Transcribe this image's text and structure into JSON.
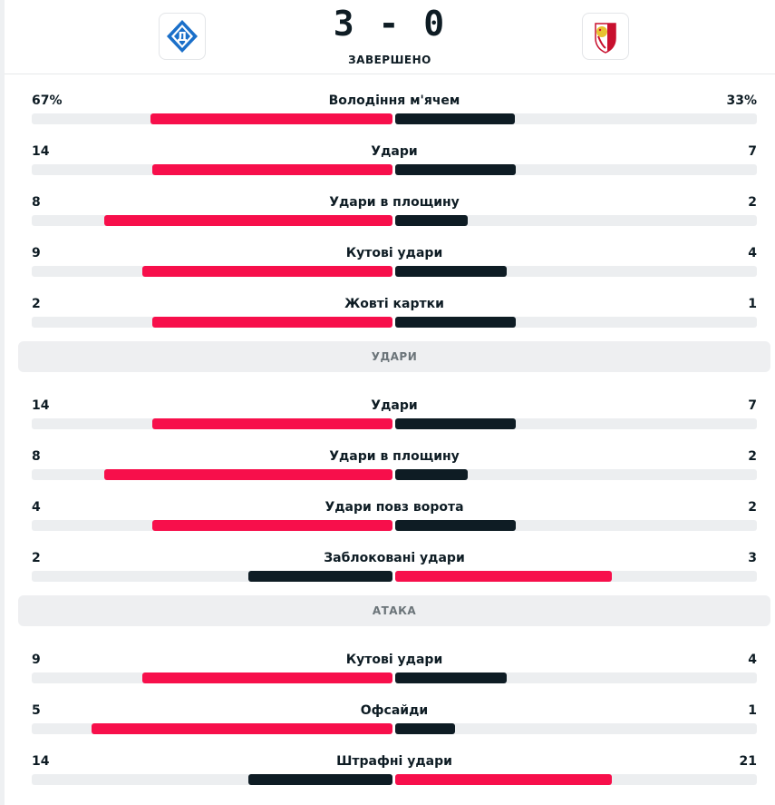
{
  "match": {
    "score": "3 - 0",
    "status": "ЗАВЕРШЕНО",
    "home_logo": "dynamo-kyiv-crest-icon",
    "away_logo": "opponent-crest-icon"
  },
  "colors": {
    "win": "#f70f4b",
    "lose": "#0e1c24",
    "track": "#eceef0"
  },
  "groups": [
    {
      "title": "",
      "stats": [
        {
          "label": "Володіння м'ячем",
          "home": "67%",
          "away": "33%",
          "home_val": 67,
          "away_val": 33
        },
        {
          "label": "Удари",
          "home": "14",
          "away": "7",
          "home_val": 14,
          "away_val": 7
        },
        {
          "label": "Удари в площину",
          "home": "8",
          "away": "2",
          "home_val": 8,
          "away_val": 2
        },
        {
          "label": "Кутові удари",
          "home": "9",
          "away": "4",
          "home_val": 9,
          "away_val": 4
        },
        {
          "label": "Жовті картки",
          "home": "2",
          "away": "1",
          "home_val": 2,
          "away_val": 1
        }
      ]
    },
    {
      "title": "УДАРИ",
      "stats": [
        {
          "label": "Удари",
          "home": "14",
          "away": "7",
          "home_val": 14,
          "away_val": 7
        },
        {
          "label": "Удари в площину",
          "home": "8",
          "away": "2",
          "home_val": 8,
          "away_val": 2
        },
        {
          "label": "Удари повз ворота",
          "home": "4",
          "away": "2",
          "home_val": 4,
          "away_val": 2
        },
        {
          "label": "Заблоковані удари",
          "home": "2",
          "away": "3",
          "home_val": 2,
          "away_val": 3
        }
      ]
    },
    {
      "title": "АТАКА",
      "stats": [
        {
          "label": "Кутові удари",
          "home": "9",
          "away": "4",
          "home_val": 9,
          "away_val": 4
        },
        {
          "label": "Офсайди",
          "home": "5",
          "away": "1",
          "home_val": 5,
          "away_val": 1
        },
        {
          "label": "Штрафні удари",
          "home": "14",
          "away": "21",
          "home_val": 14,
          "away_val": 21
        }
      ]
    }
  ]
}
